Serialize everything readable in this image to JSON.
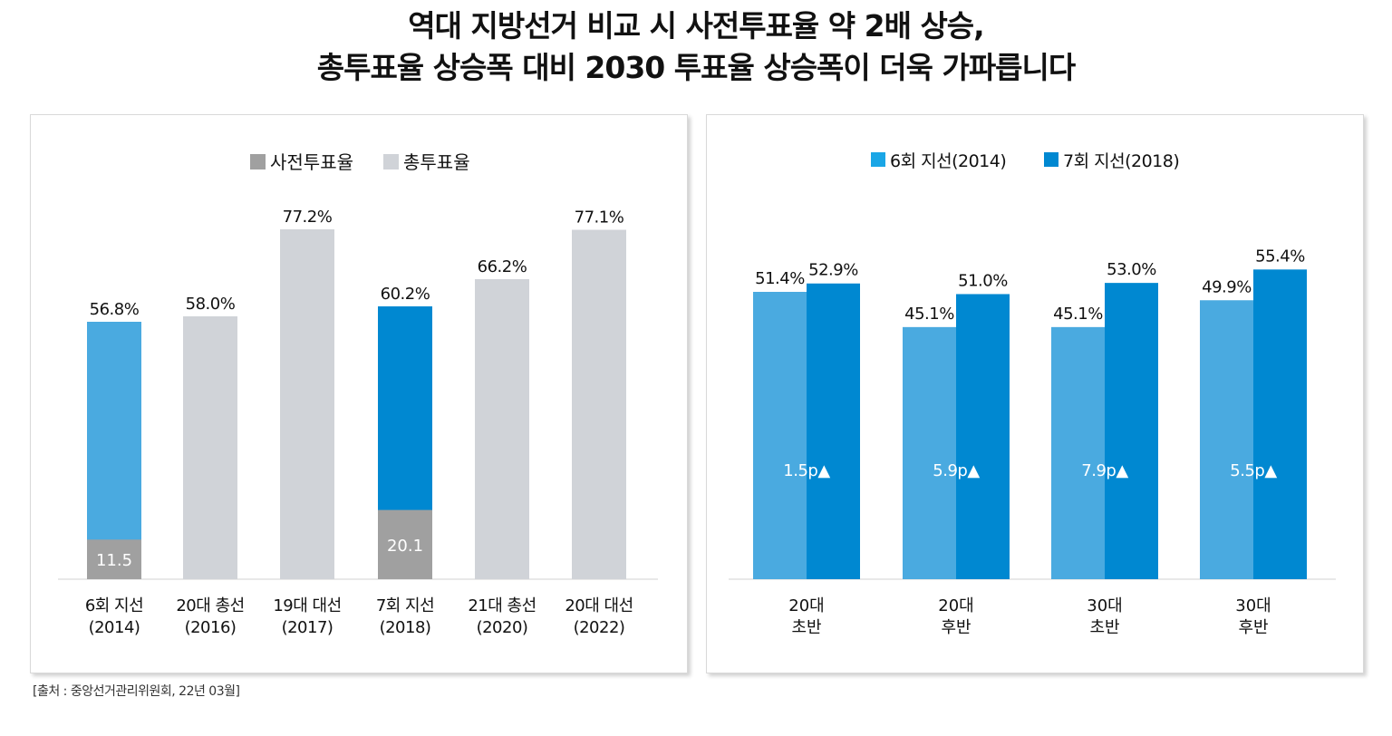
{
  "title_line1": "역대 지방선거 비교 시 사전투표율 약 2배 상승,",
  "title_line2": "총투표율 상승폭 대비 2030 투표율 상승폭이 더욱 가파릅니다",
  "source": "[출처 : 중앙선거관리위원회, 22년 03월]",
  "colors": {
    "early": "#a0a0a0",
    "total": "#d0d3d8",
    "blue_light": "#4aaae0",
    "blue_dark": "#0088d1",
    "legend_light": "#1aa6e6",
    "legend_dark": "#0088d1"
  },
  "chart_data": [
    {
      "type": "bar",
      "legend": [
        "사전투표율",
        "총투표율"
      ],
      "categories": [
        [
          "6회 지선",
          "(2014)"
        ],
        [
          "20대 총선",
          "(2016)"
        ],
        [
          "19대 대선",
          "(2017)"
        ],
        [
          "7회 지선",
          "(2018)"
        ],
        [
          "21대 총선",
          "(2020)"
        ],
        [
          "20대 대선",
          "(2022)"
        ]
      ],
      "total": [
        56.8,
        58.0,
        77.2,
        60.2,
        66.2,
        77.1
      ],
      "total_labels": [
        "56.8%",
        "58.0%",
        "77.2%",
        "60.2%",
        "66.2%",
        "77.1%"
      ],
      "early": [
        11.5,
        null,
        null,
        20.1,
        null,
        null
      ],
      "early_labels": [
        "11.5",
        "",
        "",
        "20.1",
        "",
        ""
      ],
      "highlight": [
        "light",
        null,
        null,
        "dark",
        null,
        null
      ],
      "ylim": [
        0,
        80
      ]
    },
    {
      "type": "bar",
      "legend": [
        "6회 지선(2014)",
        "7회 지선(2018)"
      ],
      "categories": [
        [
          "20대",
          "초반"
        ],
        [
          "20대",
          "후반"
        ],
        [
          "30대",
          "초반"
        ],
        [
          "30대",
          "후반"
        ]
      ],
      "series": [
        {
          "name": "6회 지선(2014)",
          "values": [
            51.4,
            45.1,
            45.1,
            49.9
          ],
          "labels": [
            "51.4%",
            "45.1%",
            "45.1%",
            "49.9%"
          ]
        },
        {
          "name": "7회 지선(2018)",
          "values": [
            52.9,
            51.0,
            53.0,
            55.4
          ],
          "labels": [
            "52.9%",
            "51.0%",
            "53.0%",
            "55.4%"
          ]
        }
      ],
      "increase_labels": [
        "1.5p▲",
        "5.9p▲",
        "7.9p▲",
        "5.5p▲"
      ],
      "ylim": [
        0,
        60
      ]
    }
  ]
}
